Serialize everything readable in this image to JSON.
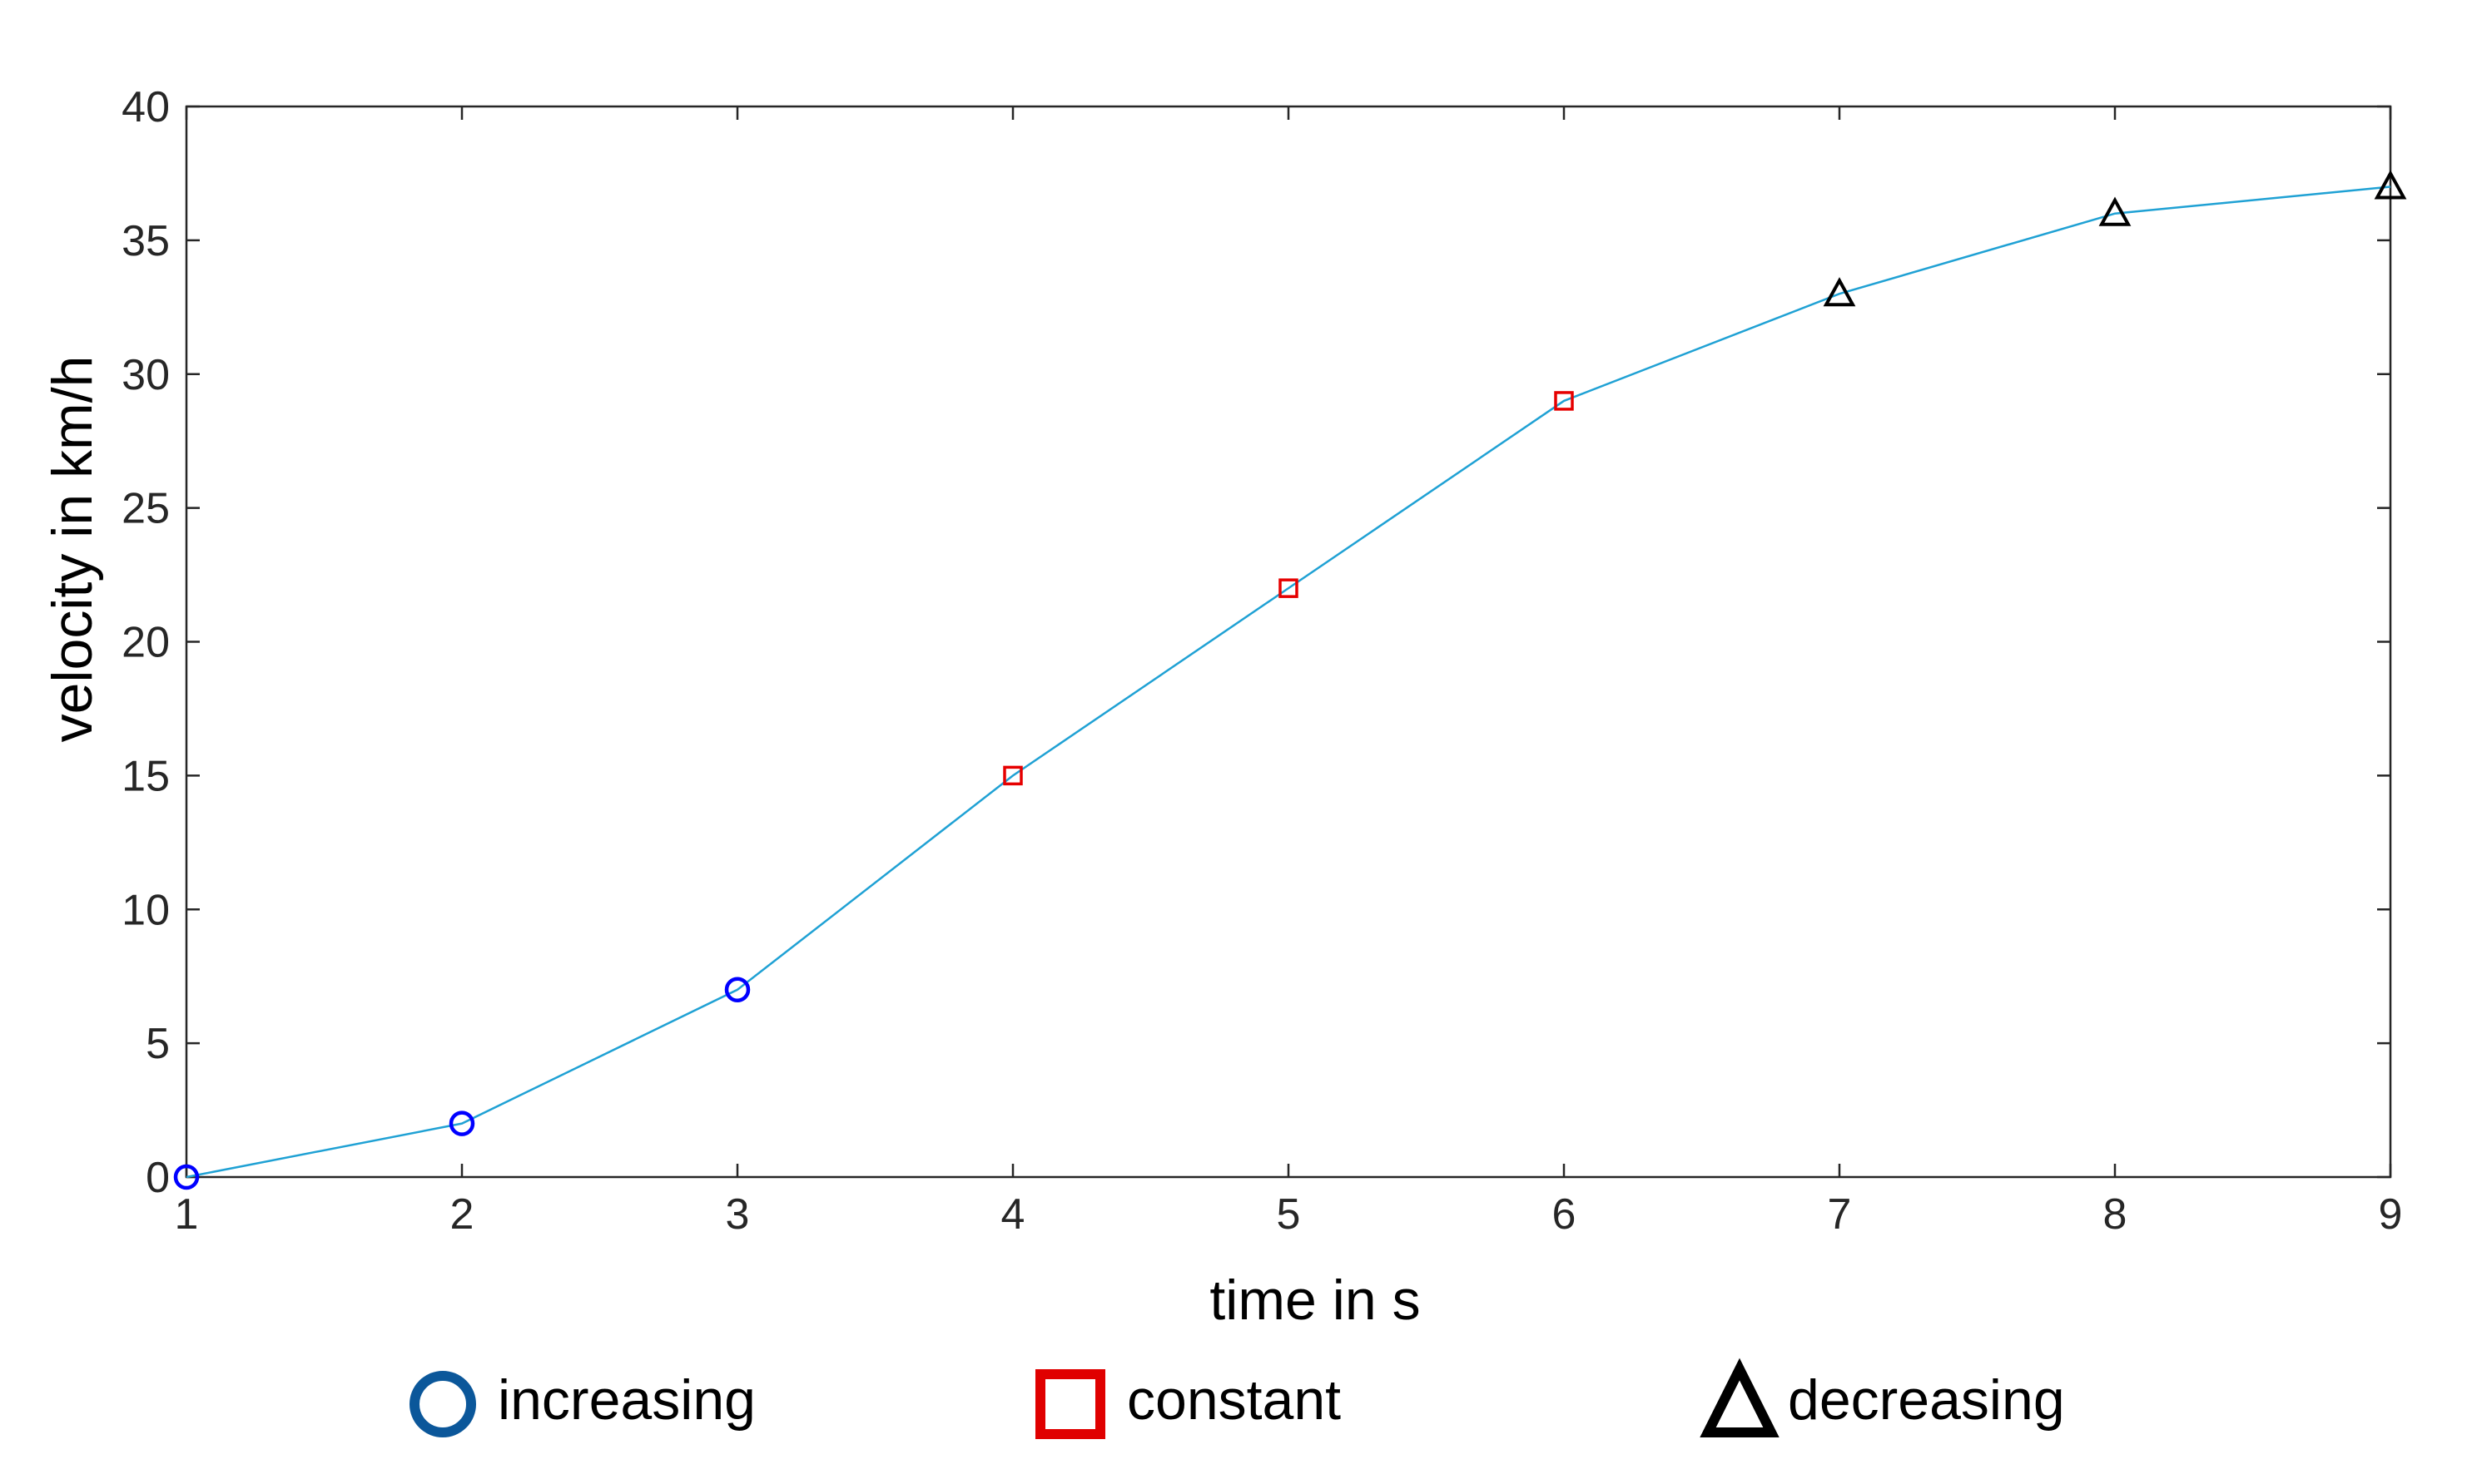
{
  "chart_data": {
    "type": "line",
    "title": "",
    "xlabel": "time in s",
    "ylabel": "velocity in km/h",
    "xlim": [
      1,
      9
    ],
    "ylim": [
      0,
      40
    ],
    "xticks": [
      1,
      2,
      3,
      4,
      5,
      6,
      7,
      8,
      9
    ],
    "yticks": [
      0,
      5,
      10,
      15,
      20,
      25,
      30,
      35,
      40
    ],
    "grid": false,
    "line_color": "#1fa1d4",
    "series": [
      {
        "name": "velocity",
        "x": [
          1,
          2,
          3,
          4,
          5,
          6,
          7,
          8,
          9
        ],
        "y": [
          0,
          2,
          7,
          15,
          22,
          29,
          33,
          36,
          37
        ],
        "markers": [
          "increasing",
          "increasing",
          "increasing",
          "constant",
          "constant",
          "constant",
          "decreasing",
          "decreasing",
          "decreasing"
        ]
      }
    ],
    "legend": {
      "placement": "bottom",
      "entries": [
        {
          "key": "increasing",
          "label": "increasing",
          "marker": "circle",
          "plot_color": "#0000ff",
          "legend_color": "#0b579a"
        },
        {
          "key": "constant",
          "label": "constant",
          "marker": "square",
          "plot_color": "#e60000",
          "legend_color": "#e00000"
        },
        {
          "key": "decreasing",
          "label": "decreasing",
          "marker": "triangle",
          "plot_color": "#000000",
          "legend_color": "#000000"
        }
      ]
    }
  }
}
